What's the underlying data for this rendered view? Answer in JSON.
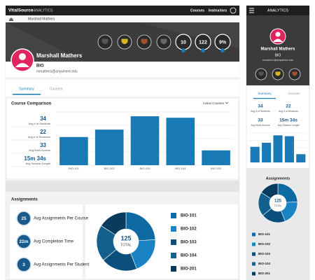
{
  "desktop": {
    "nav": {
      "brand": "VitalSource",
      "product": "ANALYTICS",
      "links": [
        "Courses",
        "Instructors"
      ]
    },
    "breadcrumb": "Marshall Mathers",
    "badges": {
      "counts": [
        "10",
        "122",
        "9%"
      ]
    },
    "profile": {
      "name": "Marshall Mathers",
      "course": "BIO",
      "email": "mmathers@anywhere.edu"
    },
    "tabs": [
      "Summary",
      "Courses"
    ],
    "comparison": {
      "title": "Course Comparison",
      "filter": "Active Courses",
      "stats": [
        {
          "value": "34",
          "label": "Avg # of Students"
        },
        {
          "value": "22",
          "label": "Avg # of Sessions"
        },
        {
          "value": "33",
          "label": "Avg Book Access"
        },
        {
          "value": "15m 34s",
          "label": "Avg Session Length"
        }
      ],
      "chart": {
        "categories": [
          "BIO-101",
          "BIO-102",
          "BIO-103",
          "BIO-104",
          "BIO-201"
        ],
        "values": [
          38,
          48,
          66,
          64,
          20
        ]
      }
    },
    "assignments": {
      "title": "Assignments",
      "stats": [
        {
          "value": "25",
          "label": "Avg Assignments Per Course"
        },
        {
          "value": "22m",
          "label": "Avg Completion Time"
        },
        {
          "value": "3",
          "label": "Avg Assignments Per Student"
        }
      ],
      "donut": {
        "total": "125",
        "total_label": "TOTAL",
        "categories": [
          "BIO-101",
          "BIO-102",
          "BIO-103",
          "BIO-104",
          "BIO-201"
        ],
        "values": [
          30,
          25,
          25,
          25,
          20
        ]
      }
    }
  },
  "mobile": {
    "nav": {
      "product": "ANALYTICS"
    },
    "profile": {
      "name": "Marshall Mathers",
      "course": "BIO",
      "email": "mmathers@anywhere.edu"
    },
    "tabs": [
      "Summary",
      "Courses"
    ],
    "stats": [
      {
        "value": "34",
        "label": "Avg # of Students"
      },
      {
        "value": "22",
        "label": "Avg # of Sessions"
      },
      {
        "value": "33",
        "label": "Avg Book Access"
      },
      {
        "value": "15m 34s",
        "label": "Avg Session Length"
      }
    ],
    "chart": {
      "values": [
        38,
        48,
        66,
        64,
        20
      ]
    },
    "assignments": {
      "title": "Assignments",
      "donut": {
        "total": "125",
        "total_label": "TOTAL",
        "categories": [
          "BIO-101",
          "BIO-102",
          "BIO-103",
          "BIO-104",
          "BIO-201"
        ],
        "values": [
          30,
          25,
          25,
          25,
          20
        ]
      }
    }
  }
}
